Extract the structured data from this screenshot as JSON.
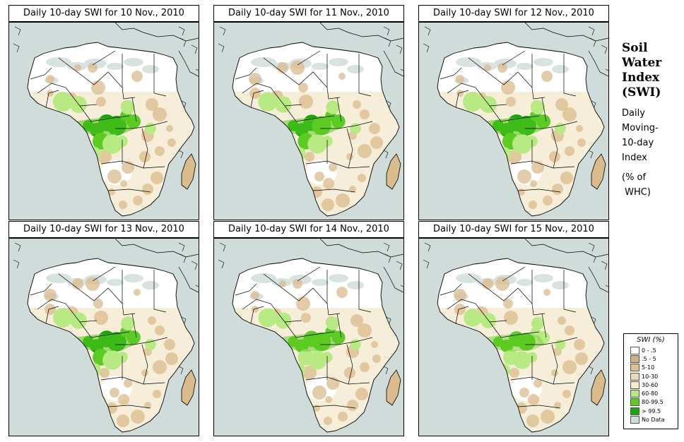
{
  "panels": [
    {
      "title": "Daily 10-day SWI for  10 Nov., 2010",
      "wetness": 1.0
    },
    {
      "title": "Daily 10-day SWI for  11 Nov., 2010",
      "wetness": 0.9
    },
    {
      "title": "Daily 10-day SWI for  12 Nov., 2010",
      "wetness": 1.0
    },
    {
      "title": "Daily 10-day SWI for  13 Nov., 2010",
      "wetness": 0.95
    },
    {
      "title": "Daily 10-day SWI for  14 Nov., 2010",
      "wetness": 0.85
    },
    {
      "title": "Daily 10-day SWI for  15 Nov., 2010",
      "wetness": 0.7
    }
  ],
  "side": {
    "title_lines": [
      "Soil",
      "Water",
      "Index",
      "(SWI)"
    ],
    "desc_lines": [
      "Daily",
      "Moving-",
      "10-day",
      "Index"
    ],
    "unit_lines": [
      "(% of",
      " WHC)"
    ]
  },
  "legend": {
    "title": "SWI (%)",
    "items": [
      {
        "label": "0 - .5",
        "color": "#ffffff"
      },
      {
        "label": ".5 - 5",
        "color": "#d2b07f"
      },
      {
        "label": "5-10",
        "color": "#dfc294"
      },
      {
        "label": "10-30",
        "color": "#ecdab4"
      },
      {
        "label": "30-60",
        "color": "#f5ecd0"
      },
      {
        "label": "60-80",
        "color": "#b8ea84"
      },
      {
        "label": "80-99.5",
        "color": "#5ccb22"
      },
      {
        "label": "> 99.5",
        "color": "#17a60c"
      },
      {
        "label": "No Data",
        "color": "#cfdcd9"
      }
    ]
  },
  "colors": {
    "ocean": "#cfdcd9",
    "land": "#f6eed8",
    "desert": "#ffffff",
    "sahara_nodata": "#d8e2df",
    "dry": "#d9bb8c",
    "wet": "#b8ea84",
    "very_wet": "#5ccb22",
    "saturated": "#17a60c"
  }
}
